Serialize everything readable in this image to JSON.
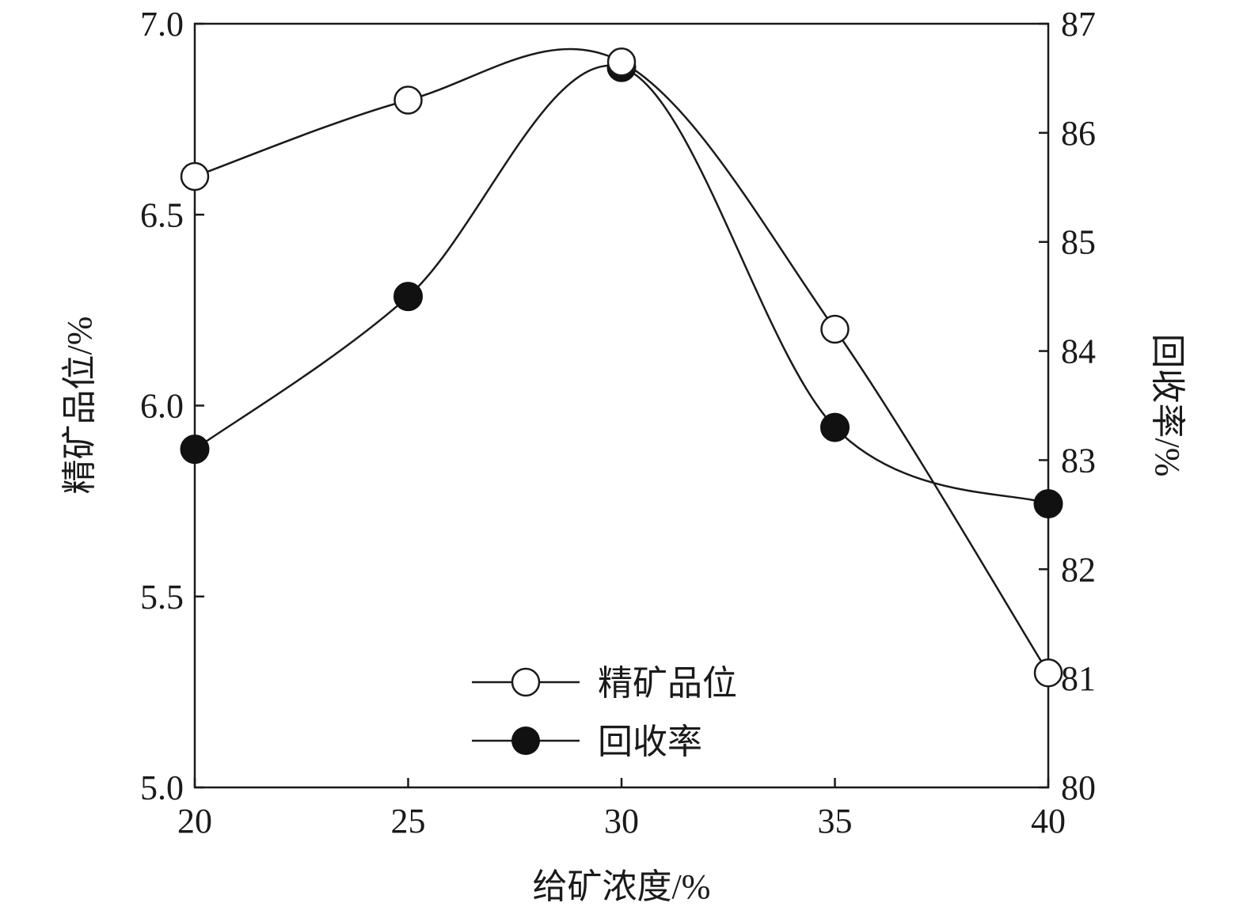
{
  "chart_data": {
    "type": "line",
    "x": [
      20,
      25,
      30,
      35,
      40
    ],
    "xlabel": "给矿浓度/%",
    "xlim": [
      20,
      40
    ],
    "xticks": [
      "20",
      "25",
      "30",
      "35",
      "40"
    ],
    "ylabel_left": "精矿品位/%",
    "ylim_left": [
      5.0,
      7.0
    ],
    "yticks_left": [
      "5.0",
      "5.5",
      "6.0",
      "6.5",
      "7.0"
    ],
    "ylabel_right": "回收率/%",
    "ylim_right": [
      80,
      87
    ],
    "yticks_right": [
      "80",
      "81",
      "82",
      "83",
      "84",
      "85",
      "86",
      "87"
    ],
    "series": [
      {
        "name": "精矿品位",
        "axis": "left",
        "marker": "open-circle",
        "values": [
          6.6,
          6.8,
          6.9,
          6.2,
          5.3
        ]
      },
      {
        "name": "回收率",
        "axis": "right",
        "marker": "filled-circle",
        "values": [
          83.1,
          84.5,
          86.6,
          83.3,
          82.6
        ]
      }
    ],
    "legend_position": "bottom-center",
    "grid": false,
    "colors": {
      "line": "#1a1a1a",
      "open_fill": "#ffffff",
      "filled": "#111111"
    }
  }
}
